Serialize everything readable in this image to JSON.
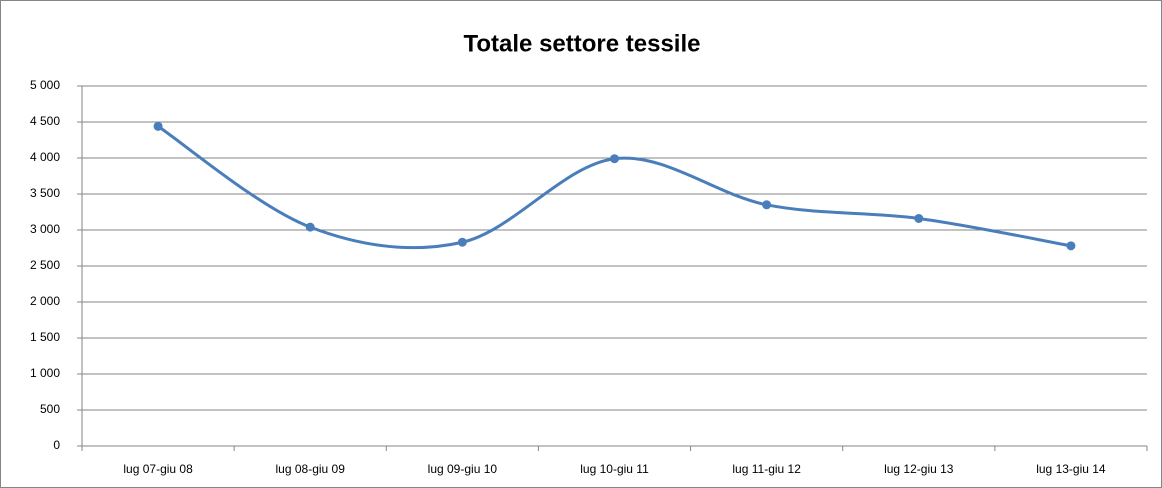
{
  "chart_data": {
    "type": "line",
    "title": "Totale settore tessile",
    "categories": [
      "lug 07-giu 08",
      "lug 08-giu 09",
      "lug 09-giu 10",
      "lug 10-giu 11",
      "lug 11-giu 12",
      "lug 12-giu 13",
      "lug 13-giu 14"
    ],
    "values": [
      4440,
      3040,
      2830,
      3990,
      3350,
      3160,
      2780
    ],
    "color": "#4a7ebb",
    "smooth": true,
    "markers": true,
    "grid": true,
    "ylim": [
      0,
      5000
    ],
    "yticks": [
      0,
      500,
      {
        "value": 1000,
        "label": "1 000"
      },
      {
        "value": 1500,
        "label": "1 500"
      },
      {
        "value": 2000,
        "label": "2 000"
      },
      {
        "value": 2500,
        "label": "2 500"
      },
      {
        "value": 3000,
        "label": "3 000"
      },
      {
        "value": 3500,
        "label": "3 500"
      },
      {
        "value": 4000,
        "label": "4 000"
      },
      {
        "value": 4500,
        "label": "4 500"
      },
      {
        "value": 5000,
        "label": "5 000"
      }
    ]
  }
}
